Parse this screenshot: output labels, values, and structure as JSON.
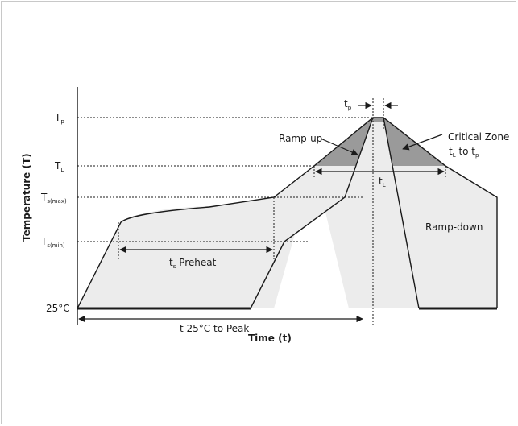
{
  "diagram": {
    "y_axis_title": "Temperature (T)",
    "x_axis_title": "Time (t)",
    "levels": {
      "tp": {
        "main": "T",
        "sub": "p"
      },
      "tl": {
        "main": "T",
        "sub": "L"
      },
      "tsmax": {
        "main": "T",
        "sub": "s(max)"
      },
      "tsmin": {
        "main": "T",
        "sub": "s(min)"
      },
      "t25": {
        "main": "25°C"
      }
    },
    "annotations": {
      "ramp_up": "Ramp-up",
      "ramp_down": "Ramp-down",
      "critical_zone": "Critical Zone",
      "tl_to_tp": {
        "a": "t",
        "a_sub": "L",
        "mid": " to t",
        "b_sub": "p"
      },
      "preheat": {
        "main": "t",
        "sub": "s",
        "rest": " Preheat"
      },
      "tl_span": {
        "main": "t",
        "sub": "L"
      },
      "tp_span": {
        "main": "t",
        "sub": "p"
      },
      "time_to_peak": "t 25°C to Peak"
    },
    "colors": {
      "fill_light": "#ececec",
      "fill_dark": "#9a9a9a",
      "line": "#1a1a1a"
    }
  }
}
